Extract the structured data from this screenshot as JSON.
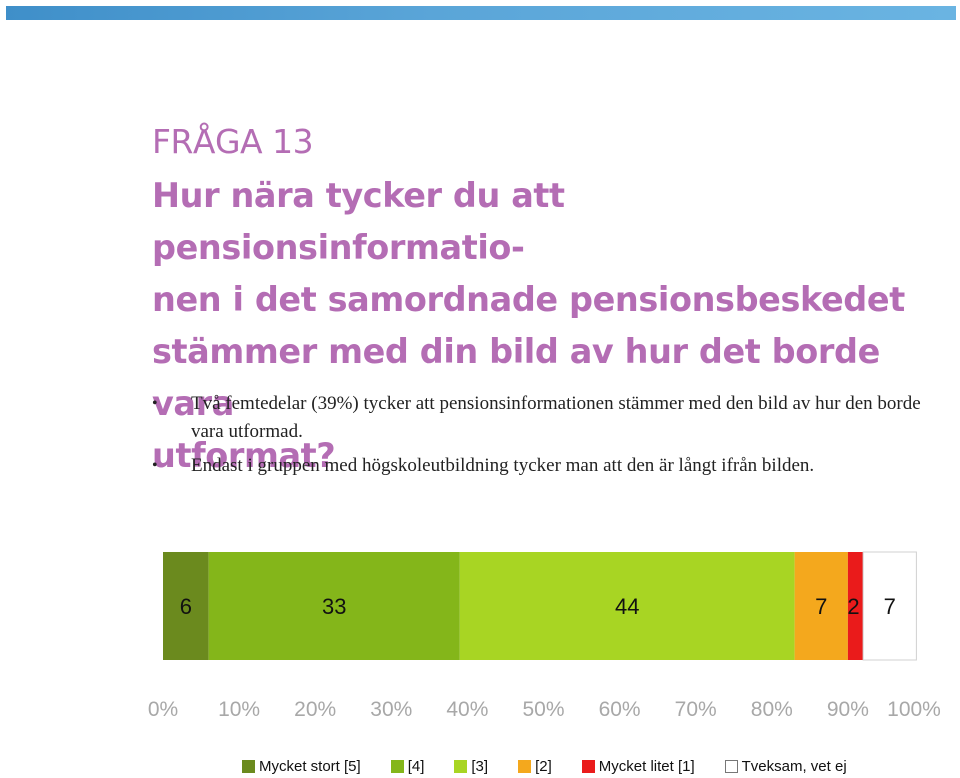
{
  "header": {
    "question_number": "FRÅGA 13",
    "question_text": "Hur nära tycker du att pensionsinformatio-nen i det samordnade pensionsbeskedet stämmer med din bild av hur det borde vara utformat?",
    "question_lines": [
      "Hur nära tycker du att pensionsinformatio-",
      "nen i det samordnade pensionsbeskedet",
      "stämmer med din bild av hur det borde vara",
      "utformat?"
    ]
  },
  "bullets": [
    "Två femtedelar (39%) tycker att pensionsinformationen stämmer med den bild av hur den borde vara utformad.",
    "Endast i gruppen med högskoleutbildning tycker man att den är långt ifrån bilden."
  ],
  "chart_data": {
    "type": "bar",
    "orientation": "horizontal",
    "stacked": true,
    "xlim": [
      0,
      100
    ],
    "x_ticks": [
      "0%",
      "10%",
      "20%",
      "30%",
      "40%",
      "50%",
      "60%",
      "70%",
      "80%",
      "90%",
      "100%"
    ],
    "series": [
      {
        "name": "Mycket stort [5]",
        "value": 6,
        "label": "6",
        "color": "#6b8a1e"
      },
      {
        "name": "[4]",
        "value": 33,
        "label": "33",
        "color": "#84b61a"
      },
      {
        "name": "[3]",
        "value": 44,
        "label": "44",
        "color": "#a8d523"
      },
      {
        "name": "[2]",
        "value": 7,
        "label": "7",
        "color": "#f4a81d"
      },
      {
        "name": "Mycket litet [1]",
        "value": 2,
        "label": "2",
        "color": "#ea1b1b"
      },
      {
        "name": "Tveksam, vet ej",
        "value": 7,
        "label": "7",
        "color": "#ffffff"
      }
    ],
    "legend_position": "bottom",
    "grid": false
  }
}
